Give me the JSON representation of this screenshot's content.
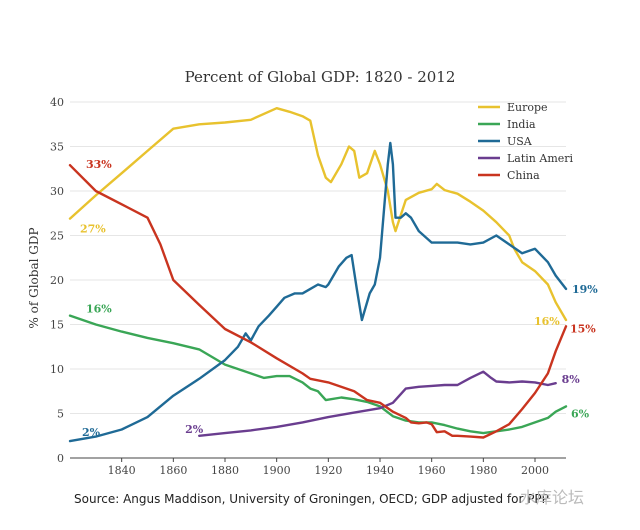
{
  "chart_data": {
    "type": "line",
    "title": "Percent of Global GDP: 1820 - 2012",
    "xlabel": "",
    "ylabel": "% of Global GDP",
    "xlim": [
      1820,
      2012
    ],
    "ylim": [
      0,
      40
    ],
    "x_ticks": [
      "1840",
      "1860",
      "1880",
      "1900",
      "1920",
      "1940",
      "1960",
      "1980",
      "2000"
    ],
    "y_ticks": [
      "0",
      "5",
      "10",
      "15",
      "20",
      "25",
      "30",
      "35",
      "40"
    ],
    "grid": true,
    "legend_position": "top-right",
    "series": [
      {
        "name": "Europe",
        "color": "#e8c22e",
        "points": [
          [
            1820,
            26.9
          ],
          [
            1830,
            29.5
          ],
          [
            1840,
            32.0
          ],
          [
            1850,
            34.5
          ],
          [
            1860,
            37.0
          ],
          [
            1870,
            37.5
          ],
          [
            1880,
            37.7
          ],
          [
            1890,
            38.0
          ],
          [
            1900,
            39.3
          ],
          [
            1905,
            38.9
          ],
          [
            1910,
            38.4
          ],
          [
            1913,
            37.9
          ],
          [
            1916,
            34.0
          ],
          [
            1919,
            31.5
          ],
          [
            1921,
            31.0
          ],
          [
            1925,
            33.0
          ],
          [
            1928,
            35.0
          ],
          [
            1930,
            34.5
          ],
          [
            1932,
            31.5
          ],
          [
            1935,
            32.0
          ],
          [
            1938,
            34.5
          ],
          [
            1940,
            33.0
          ],
          [
            1943,
            30.0
          ],
          [
            1945,
            26.5
          ],
          [
            1946,
            25.5
          ],
          [
            1950,
            29.0
          ],
          [
            1955,
            29.8
          ],
          [
            1960,
            30.2
          ],
          [
            1962,
            30.8
          ],
          [
            1965,
            30.1
          ],
          [
            1970,
            29.7
          ],
          [
            1975,
            28.8
          ],
          [
            1980,
            27.8
          ],
          [
            1985,
            26.5
          ],
          [
            1990,
            25.0
          ],
          [
            1992,
            23.5
          ],
          [
            1995,
            22.0
          ],
          [
            2000,
            21.0
          ],
          [
            2005,
            19.5
          ],
          [
            2008,
            17.5
          ],
          [
            2012,
            15.5
          ]
        ],
        "labels": [
          {
            "x": 1820,
            "text": "27%"
          },
          {
            "x": 2012,
            "text": "16%"
          }
        ]
      },
      {
        "name": "India",
        "color": "#3aa656",
        "points": [
          [
            1820,
            16.0
          ],
          [
            1830,
            15.0
          ],
          [
            1840,
            14.2
          ],
          [
            1850,
            13.5
          ],
          [
            1860,
            12.9
          ],
          [
            1870,
            12.2
          ],
          [
            1880,
            10.5
          ],
          [
            1885,
            10.0
          ],
          [
            1890,
            9.5
          ],
          [
            1895,
            9.0
          ],
          [
            1900,
            9.2
          ],
          [
            1905,
            9.2
          ],
          [
            1910,
            8.5
          ],
          [
            1913,
            7.8
          ],
          [
            1916,
            7.5
          ],
          [
            1919,
            6.5
          ],
          [
            1925,
            6.8
          ],
          [
            1930,
            6.6
          ],
          [
            1935,
            6.3
          ],
          [
            1940,
            5.8
          ],
          [
            1945,
            4.7
          ],
          [
            1950,
            4.2
          ],
          [
            1955,
            4.0
          ],
          [
            1960,
            4.0
          ],
          [
            1965,
            3.7
          ],
          [
            1970,
            3.3
          ],
          [
            1975,
            3.0
          ],
          [
            1980,
            2.8
          ],
          [
            1985,
            3.0
          ],
          [
            1990,
            3.2
          ],
          [
            1995,
            3.5
          ],
          [
            2000,
            4.0
          ],
          [
            2005,
            4.5
          ],
          [
            2008,
            5.2
          ],
          [
            2012,
            5.8
          ]
        ],
        "labels": [
          {
            "x": 1820,
            "text": "16%"
          },
          {
            "x": 2012,
            "text": "6%"
          }
        ]
      },
      {
        "name": "USA",
        "color": "#1f6a96",
        "points": [
          [
            1820,
            1.9
          ],
          [
            1830,
            2.4
          ],
          [
            1840,
            3.2
          ],
          [
            1850,
            4.6
          ],
          [
            1860,
            7.0
          ],
          [
            1870,
            8.9
          ],
          [
            1880,
            11.0
          ],
          [
            1885,
            12.5
          ],
          [
            1888,
            14.0
          ],
          [
            1890,
            13.2
          ],
          [
            1893,
            14.8
          ],
          [
            1897,
            16.0
          ],
          [
            1900,
            17.0
          ],
          [
            1903,
            18.0
          ],
          [
            1907,
            18.5
          ],
          [
            1910,
            18.5
          ],
          [
            1913,
            19.0
          ],
          [
            1916,
            19.5
          ],
          [
            1919,
            19.2
          ],
          [
            1920,
            19.5
          ],
          [
            1924,
            21.5
          ],
          [
            1927,
            22.5
          ],
          [
            1929,
            22.8
          ],
          [
            1931,
            19.0
          ],
          [
            1933,
            15.5
          ],
          [
            1936,
            18.5
          ],
          [
            1938,
            19.5
          ],
          [
            1940,
            22.5
          ],
          [
            1942,
            29.5
          ],
          [
            1943,
            33.0
          ],
          [
            1944,
            35.4
          ],
          [
            1945,
            33.0
          ],
          [
            1946,
            27.0
          ],
          [
            1948,
            27.0
          ],
          [
            1950,
            27.5
          ],
          [
            1952,
            27.0
          ],
          [
            1955,
            25.5
          ],
          [
            1960,
            24.2
          ],
          [
            1970,
            24.2
          ],
          [
            1975,
            24.0
          ],
          [
            1980,
            24.2
          ],
          [
            1985,
            25.0
          ],
          [
            1990,
            24.0
          ],
          [
            1995,
            23.0
          ],
          [
            2000,
            23.5
          ],
          [
            2005,
            22.0
          ],
          [
            2008,
            20.5
          ],
          [
            2012,
            19.0
          ]
        ],
        "labels": [
          {
            "x": 1820,
            "text": "2%"
          },
          {
            "x": 2012,
            "text": "19%"
          }
        ]
      },
      {
        "name": "Latin Ameri",
        "color": "#6a3d8f",
        "points": [
          [
            1870,
            2.5
          ],
          [
            1880,
            2.8
          ],
          [
            1890,
            3.1
          ],
          [
            1900,
            3.5
          ],
          [
            1910,
            4.0
          ],
          [
            1920,
            4.6
          ],
          [
            1930,
            5.1
          ],
          [
            1940,
            5.6
          ],
          [
            1945,
            6.2
          ],
          [
            1950,
            7.8
          ],
          [
            1955,
            8.0
          ],
          [
            1960,
            8.1
          ],
          [
            1965,
            8.2
          ],
          [
            1970,
            8.2
          ],
          [
            1975,
            9.0
          ],
          [
            1980,
            9.7
          ],
          [
            1983,
            9.0
          ],
          [
            1985,
            8.6
          ],
          [
            1990,
            8.5
          ],
          [
            1995,
            8.6
          ],
          [
            2000,
            8.5
          ],
          [
            2005,
            8.2
          ],
          [
            2008,
            8.4
          ]
        ],
        "labels": [
          {
            "x": 1870,
            "text": "2%"
          },
          {
            "x": 2008,
            "text": "8%"
          }
        ]
      },
      {
        "name": "China",
        "color": "#c9341f",
        "points": [
          [
            1820,
            32.9
          ],
          [
            1830,
            30.0
          ],
          [
            1840,
            28.5
          ],
          [
            1850,
            27.0
          ],
          [
            1855,
            24.0
          ],
          [
            1860,
            20.0
          ],
          [
            1870,
            17.2
          ],
          [
            1880,
            14.5
          ],
          [
            1890,
            13.0
          ],
          [
            1900,
            11.2
          ],
          [
            1910,
            9.5
          ],
          [
            1913,
            8.9
          ],
          [
            1920,
            8.5
          ],
          [
            1930,
            7.5
          ],
          [
            1935,
            6.5
          ],
          [
            1940,
            6.2
          ],
          [
            1945,
            5.2
          ],
          [
            1950,
            4.5
          ],
          [
            1952,
            4.0
          ],
          [
            1955,
            3.9
          ],
          [
            1958,
            4.0
          ],
          [
            1960,
            3.8
          ],
          [
            1962,
            2.9
          ],
          [
            1965,
            3.0
          ],
          [
            1968,
            2.5
          ],
          [
            1970,
            2.5
          ],
          [
            1975,
            2.4
          ],
          [
            1980,
            2.3
          ],
          [
            1985,
            3.0
          ],
          [
            1990,
            3.8
          ],
          [
            1995,
            5.5
          ],
          [
            2000,
            7.3
          ],
          [
            2005,
            9.5
          ],
          [
            2008,
            12.0
          ],
          [
            2012,
            14.8
          ]
        ],
        "labels": [
          {
            "x": 1820,
            "text": "33%"
          },
          {
            "x": 2012,
            "text": "15%"
          }
        ]
      }
    ]
  },
  "source": "Source: Angus Maddison, University of Groningen, OECD; GDP adjusted for PPP",
  "watermark": "水库论坛"
}
